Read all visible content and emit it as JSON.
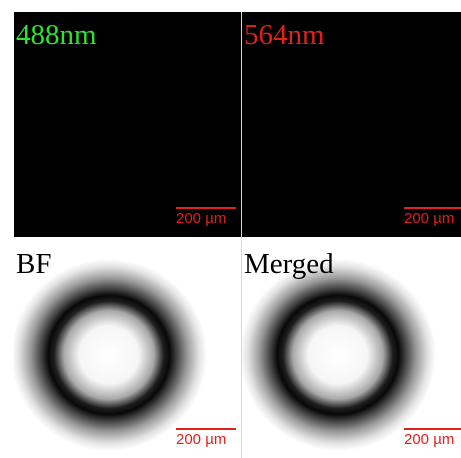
{
  "panels": [
    {
      "id": "488",
      "label": "488nm",
      "label_color": "#2fe22f",
      "scale_text": "200 µm"
    },
    {
      "id": "564",
      "label": "564nm",
      "label_color": "#e0201b",
      "scale_text": "200 µm"
    },
    {
      "id": "bf",
      "label": "BF",
      "label_color": "#000000",
      "scale_text": "200 µm"
    },
    {
      "id": "merged",
      "label": "Merged",
      "label_color": "#000000",
      "scale_text": "200 µm"
    }
  ],
  "colors": {
    "dark_background": "#000000",
    "scale_bar": "#e0201b"
  }
}
